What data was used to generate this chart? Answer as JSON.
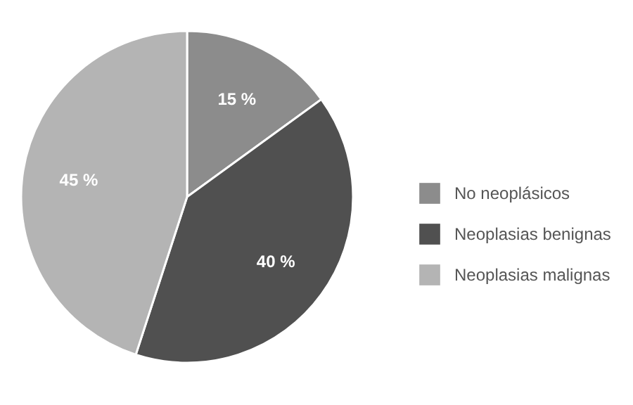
{
  "chart_data": {
    "type": "pie",
    "categories": [
      "No neoplásicos",
      "Neoplasias benignas",
      "Neoplasias malignas"
    ],
    "values": [
      15,
      40,
      45
    ],
    "colors": [
      "#8c8c8c",
      "#505050",
      "#b4b4b4"
    ],
    "value_labels": [
      "15 %",
      "40 %",
      "45 %"
    ],
    "legend": "right"
  }
}
